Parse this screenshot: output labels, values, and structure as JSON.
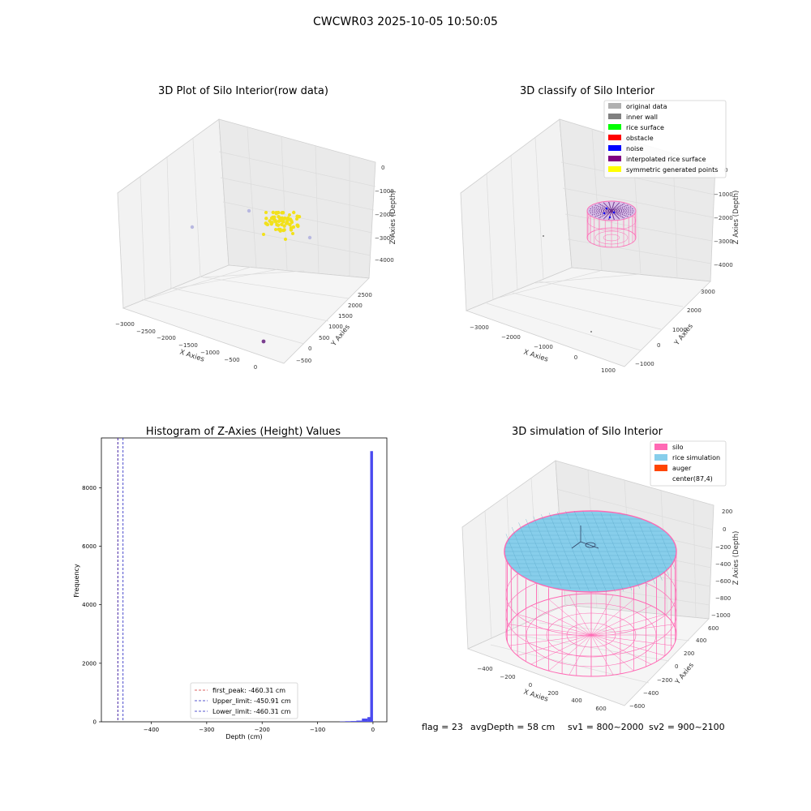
{
  "suptitle": "CWCWR03 2025-10-05 10:50:05",
  "colors": {
    "yellow": "#f2e11a",
    "hist_bar": "#4a4af0",
    "peak_line": "#3a3ae0",
    "silo_pink": "#ff69b4",
    "rice_blue": "#87ceeb",
    "auger": "#ff4500",
    "pane": "#f2f2f2",
    "grid": "#dcdcdc"
  },
  "footer": {
    "flag": "flag = 23",
    "avg_depth": "avgDepth = 58 cm",
    "sv1": "sv1 = 800~2000",
    "sv2": "sv2 = 900~2100"
  },
  "chart_data": [
    {
      "type": "scatter",
      "title": "3D Plot of Silo Interior(row data)",
      "xlabel": "X Axies",
      "ylabel": "Y Axies",
      "zlabel": "Z Axies (Depth)",
      "x_ticks": [
        "−3000",
        "−2500",
        "−2000",
        "−1500",
        "−1000",
        "−500",
        "0"
      ],
      "y_ticks": [
        "−500",
        "0",
        "500",
        "1000",
        "1500",
        "2000",
        "2500"
      ],
      "z_ticks": [
        "0",
        "−1000",
        "−2000",
        "−3000",
        "−4000"
      ],
      "xlim": [
        -3000,
        100
      ],
      "ylim": [
        -600,
        2800
      ],
      "zlim": [
        -4500,
        200
      ],
      "cluster_center": {
        "x": -700,
        "y": 1100,
        "z": -2200
      },
      "cluster_point_count": 60,
      "outliers": [
        {
          "x": -2600,
          "y": 1200,
          "z": -2500,
          "color": "#b8b8e0"
        },
        {
          "x": -1600,
          "y": 2000,
          "z": -1800,
          "color": "#b8b8e0"
        },
        {
          "x": 100,
          "y": 1200,
          "z": -2800,
          "color": "#b8b8e0"
        },
        {
          "x": -300,
          "y": -300,
          "z": -3800,
          "color": "#7a3f8f"
        }
      ]
    },
    {
      "type": "scatter",
      "title": "3D classify of Silo Interior",
      "xlabel": "X Axies",
      "ylabel": "Y Axies",
      "zlabel": "Z Axies (Depth)",
      "x_ticks": [
        "−3000",
        "−2000",
        "−1000",
        "0",
        "1000"
      ],
      "y_ticks": [
        "−1000",
        "0",
        "1000",
        "2000",
        "3000"
      ],
      "z_ticks": [
        "0",
        "−1000",
        "−2000",
        "−3000",
        "−4000"
      ],
      "legend": [
        {
          "label": "original data",
          "color": "#b0b0b0"
        },
        {
          "label": "inner wall",
          "color": "#808080"
        },
        {
          "label": "rice surface",
          "color": "#00ff00"
        },
        {
          "label": "obstacle",
          "color": "#ff0000"
        },
        {
          "label": "noise",
          "color": "#0000ff"
        },
        {
          "label": "interpolated rice surface",
          "color": "#800080"
        },
        {
          "label": "symmetric generated points",
          "color": "#ffff00"
        }
      ]
    },
    {
      "type": "bar",
      "title": "Histogram of Z-Axies (Height) Values",
      "xlabel": "Depth (cm)",
      "ylabel": "Frequency",
      "x_ticks": [
        -400,
        -300,
        -200,
        -100,
        0
      ],
      "x_tick_labels": [
        "−400",
        "−300",
        "−200",
        "−100",
        "0"
      ],
      "y_ticks": [
        0,
        2000,
        4000,
        6000,
        8000
      ],
      "xlim": [
        -490,
        25
      ],
      "ylim": [
        0,
        9700
      ],
      "bins": [
        {
          "start": -60,
          "end": -50,
          "count": 10
        },
        {
          "start": -50,
          "end": -40,
          "count": 20
        },
        {
          "start": -40,
          "end": -30,
          "count": 25
        },
        {
          "start": -30,
          "end": -20,
          "count": 40
        },
        {
          "start": -20,
          "end": -10,
          "count": 110
        },
        {
          "start": -10,
          "end": -5,
          "count": 160
        },
        {
          "start": -5,
          "end": 0,
          "count": 9250
        }
      ],
      "vlines": [
        {
          "x": -460.31,
          "style": "red-dashed"
        },
        {
          "x": -450.91,
          "style": "blue-dashed"
        },
        {
          "x": -460.31,
          "style": "blue-dashed"
        }
      ],
      "legend": [
        {
          "label": "first_peak: -460.31 cm",
          "color": "#d03030"
        },
        {
          "label": "Upper_limit: -450.91 cm",
          "color": "#2020c0"
        },
        {
          "label": "Lower_limit: -460.31 cm",
          "color": "#2020c0"
        }
      ]
    },
    {
      "type": "scatter",
      "title": "3D simulation of Silo Interior",
      "xlabel": "X Axies",
      "ylabel": "Y Axies",
      "zlabel": "Z Axies (Depth)",
      "x_ticks": [
        "−400",
        "−200",
        "0",
        "200",
        "400",
        "600"
      ],
      "y_ticks": [
        "−600",
        "−400",
        "−200",
        "0",
        "200",
        "400",
        "600"
      ],
      "z_ticks": [
        "200",
        "0",
        "−200",
        "−400",
        "−600",
        "−800",
        "−1000"
      ],
      "legend": [
        {
          "label": "silo",
          "color": "#ff69b4"
        },
        {
          "label": "rice simulation",
          "color": "#87ceeb"
        },
        {
          "label": "auger",
          "color": "#ff4500"
        },
        {
          "label": "center(87,4)",
          "color": ""
        }
      ]
    }
  ]
}
